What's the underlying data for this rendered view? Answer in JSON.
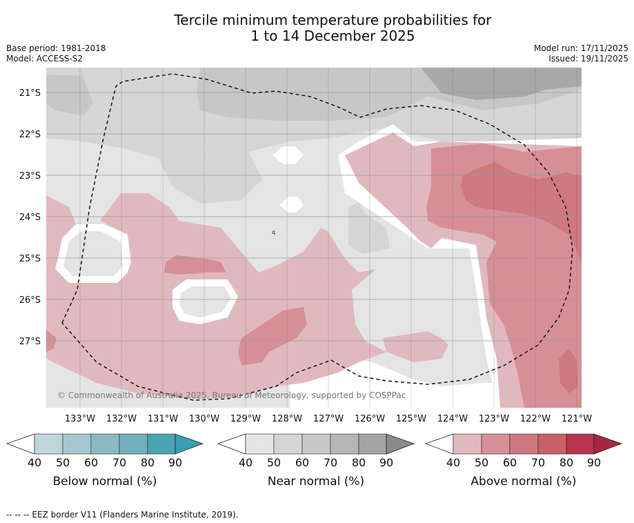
{
  "header": {
    "title_line1": "Tercile minimum temperature probabilities for",
    "title_line2": "1 to 14 December 2025",
    "base_period": "Base period: 1981-2018",
    "model": "Model: ACCESS-S2",
    "model_run": "Model run: 17/11/2025",
    "issued": "Issued: 19/11/2025"
  },
  "map": {
    "lat_labels": [
      "21°S",
      "22°S",
      "23°S",
      "24°S",
      "25°S",
      "26°S",
      "27°S"
    ],
    "lon_labels": [
      "133°W",
      "132°W",
      "131°W",
      "130°W",
      "129°W",
      "128°W",
      "127°W",
      "126°W",
      "125°W",
      "124°W",
      "123°W",
      "122°W",
      "121°W"
    ],
    "copyright": "© Commonwealth of Australia 2025, Bureau of Meteorology, supported by COSPPac"
  },
  "colorbars": [
    {
      "label": "Below normal (%)",
      "ticks": [
        "40",
        "50",
        "60",
        "70",
        "80",
        "90"
      ],
      "colors": [
        "#bed5db",
        "#a5c8ce",
        "#8cbac4",
        "#73afbd",
        "#4aa3b3",
        "#3a9db0"
      ]
    },
    {
      "label": "Near normal (%)",
      "ticks": [
        "40",
        "50",
        "60",
        "70",
        "80",
        "90"
      ],
      "colors": [
        "#e4e4e4",
        "#d5d5d5",
        "#c7c7c7",
        "#b5b5b5",
        "#a4a4a4",
        "#8a8a8a"
      ]
    },
    {
      "label": "Above normal (%)",
      "ticks": [
        "40",
        "50",
        "60",
        "70",
        "80",
        "90"
      ],
      "colors": [
        "#e0b9be",
        "#d68f97",
        "#ce7880",
        "#c86068",
        "#b8344c",
        "#a62643"
      ]
    }
  ],
  "footnote": "--  --  -- EEZ border V11 (Flanders Marine Institute, 2019)."
}
